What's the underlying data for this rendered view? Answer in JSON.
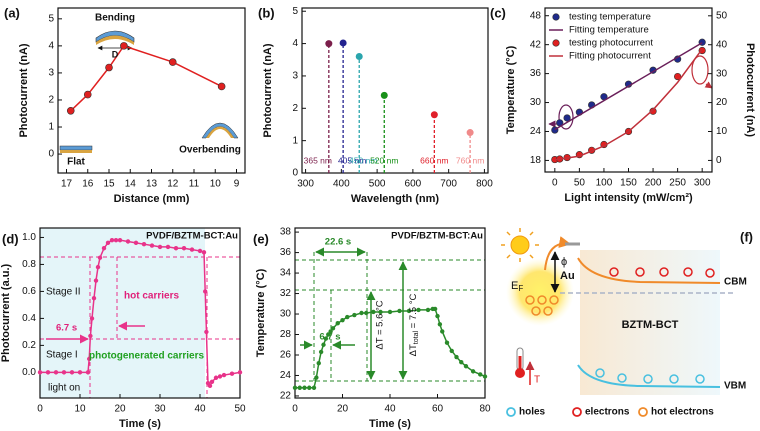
{
  "chart_data": [
    {
      "type": "line",
      "label": "(a)",
      "xlabel": "Distance (mm)",
      "ylabel": "Photocurrent (nA)",
      "xlim": [
        17.4,
        8.6
      ],
      "xticks": [
        17,
        16,
        15,
        14,
        13,
        12,
        11,
        10,
        9
      ],
      "ylim": [
        -0.7,
        5.4
      ],
      "yticks": [
        0,
        1,
        2,
        3,
        4,
        5
      ],
      "series": [
        {
          "x": [
            16.8,
            16,
            15,
            14.3,
            12,
            9.7
          ],
          "values": [
            1.6,
            2.2,
            3.2,
            4.0,
            3.4,
            2.5
          ],
          "color": "#e02020",
          "markers": true,
          "line": true
        }
      ],
      "annotations": [
        "Bending",
        "D",
        "Flat",
        "Overbending"
      ]
    },
    {
      "type": "stem",
      "label": "(b)",
      "xlabel": "Wavelength (nm)",
      "ylabel": "Photocurrent (nA)",
      "xlim": [
        290,
        810
      ],
      "xticks": [
        300,
        400,
        500,
        600,
        700,
        800
      ],
      "ylim": [
        0,
        5.1
      ],
      "yticks": [
        0,
        1,
        2,
        3,
        4,
        5
      ],
      "x": [
        365,
        405,
        450,
        520,
        660,
        760
      ],
      "values": [
        4.0,
        4.02,
        3.6,
        2.4,
        1.8,
        1.25
      ],
      "x_labels": [
        "365 nm",
        "405 nm",
        "450 nm",
        "520 nm",
        "660 nm",
        "760 nm"
      ],
      "colors": [
        "#7b1f4b",
        "#22228f",
        "#2aa5ad",
        "#189018",
        "#e0202a",
        "#f08a8a"
      ]
    },
    {
      "type": "line",
      "label": "(c)",
      "xlabel": "Light intensity (mW/cm²)",
      "ylabel": "Temperature (°C)",
      "y2label": "Photocurrent (nA)",
      "xlim": [
        -20,
        320
      ],
      "xticks": [
        0,
        50,
        100,
        150,
        200,
        250,
        300
      ],
      "ylim": [
        15.6,
        49.6
      ],
      "yticks": [
        18,
        24,
        30,
        36,
        42,
        48
      ],
      "y2lim": [
        -4,
        52.7
      ],
      "y2ticks": [
        0,
        10,
        20,
        30,
        40,
        50
      ],
      "legend": "upper left",
      "series": [
        {
          "name": "testing temperature",
          "color": "#1f2a8a",
          "markers": true,
          "line": false,
          "x": [
            0,
            10,
            25,
            50,
            75,
            100,
            150,
            200,
            250,
            300
          ],
          "values": [
            24.3,
            25.8,
            26.8,
            28,
            29.5,
            31.2,
            33.8,
            36.7,
            39,
            42.5
          ]
        },
        {
          "name": "Fitting temperature",
          "color": "#6a1f5a",
          "markers": false,
          "line": true,
          "x": [
            0,
            300
          ],
          "values": [
            24.4,
            42.4
          ]
        },
        {
          "name": "testing photocurrent",
          "color": "#e02020",
          "markers": true,
          "line": false,
          "axis": "y2",
          "x": [
            0,
            10,
            25,
            50,
            75,
            100,
            150,
            200,
            250,
            300
          ],
          "values": [
            0.3,
            0.5,
            1,
            2,
            3.5,
            5.5,
            10,
            17,
            29,
            38
          ]
        },
        {
          "name": "Fitting photocurrent",
          "color": "#c0303a",
          "markers": false,
          "line": true,
          "axis": "y2",
          "x": [
            0,
            50,
            100,
            150,
            200,
            250,
            300
          ],
          "values": [
            0.2,
            1.5,
            5,
            10,
            17.5,
            27,
            38.5
          ]
        }
      ]
    },
    {
      "type": "line",
      "label": "(d)",
      "xlabel": "Time (s)",
      "ylabel": "Photocurrent (a.u.)",
      "xlim": [
        0,
        50
      ],
      "xticks": [
        0,
        10,
        20,
        30,
        40,
        50
      ],
      "ylim": [
        -0.19,
        1.07
      ],
      "yticks": [
        {
          "value": 0,
          "label": "0.0"
        },
        0.2,
        0.4,
        0.6,
        0.8,
        {
          "value": 1,
          "label": "1.0"
        }
      ],
      "series": [
        {
          "color": "#e8338a",
          "markers": true,
          "line": true,
          "x": [
            0,
            2,
            4,
            6,
            8,
            10,
            12,
            12.3,
            12.6,
            13,
            13.5,
            14,
            14.5,
            15,
            16,
            17,
            18,
            19,
            20,
            22,
            24,
            26,
            28,
            30,
            32,
            34,
            36,
            38,
            40,
            41,
            41.3,
            41.6,
            42,
            42.5,
            43,
            44,
            45,
            46,
            48,
            50
          ],
          "values": [
            0,
            0,
            0,
            0,
            0,
            0,
            0,
            0.1,
            0.27,
            0.4,
            0.55,
            0.68,
            0.78,
            0.85,
            0.92,
            0.96,
            0.98,
            0.98,
            0.98,
            0.97,
            0.96,
            0.95,
            0.94,
            0.93,
            0.93,
            0.92,
            0.92,
            0.91,
            0.9,
            0.89,
            0.6,
            0.3,
            -0.08,
            -0.1,
            -0.07,
            -0.04,
            -0.03,
            -0.02,
            -0.01,
            0
          ]
        }
      ],
      "annotations": [
        "PVDF/BZTM-BCT:Au",
        "Stage II",
        "Stage I",
        "hot carriers",
        "photogenerated carriers",
        "6.7 s",
        "light on"
      ]
    },
    {
      "type": "line",
      "label": "(e)",
      "xlabel": "Time (s)",
      "ylabel": "Temperature (°C)",
      "xlim": [
        0,
        80
      ],
      "xticks": [
        0,
        20,
        40,
        60,
        80
      ],
      "ylim": [
        21.8,
        38.4
      ],
      "yticks": [
        22,
        24,
        26,
        28,
        30,
        32,
        34,
        36,
        38
      ],
      "series": [
        {
          "color": "#2a8a2a",
          "markers": true,
          "line": true,
          "x": [
            0,
            2,
            4,
            6,
            8,
            9,
            10,
            11,
            12,
            13,
            14,
            15,
            16,
            18,
            20,
            22,
            25,
            28,
            30,
            33,
            36,
            40,
            44,
            48,
            52,
            56,
            58,
            59,
            60,
            61,
            62,
            64,
            66,
            68,
            70,
            72,
            75,
            78,
            80
          ],
          "values": [
            22.8,
            22.8,
            22.8,
            22.8,
            22.8,
            23.8,
            25.2,
            26.3,
            27,
            27.6,
            28,
            28.3,
            28.6,
            29.1,
            29.4,
            29.7,
            29.9,
            30.1,
            30.1,
            30.2,
            30.2,
            30.2,
            30.3,
            30.3,
            30.4,
            30.4,
            30.5,
            30.5,
            29.8,
            29,
            28.3,
            27.2,
            26.4,
            25.8,
            25.3,
            24.9,
            24.4,
            24.1,
            23.9
          ]
        }
      ],
      "annotations": [
        "PVDF/BZTM-BCT:Au",
        "22.6 s",
        "6.7 s",
        "ΔT = 5.6 °C",
        [
          "ΔT",
          "total",
          " = 7.5 °C"
        ]
      ]
    }
  ],
  "diagram": {
    "label": "(f)",
    "metal": "Au",
    "barrier": "ϕ",
    "fermi": [
      "E",
      "F"
    ],
    "cbm": "CBM",
    "vbm": "VBM",
    "material": "BZTM-BCT",
    "temperature": "T",
    "legend": [
      "holes",
      "electrons",
      "hot electrons"
    ]
  }
}
